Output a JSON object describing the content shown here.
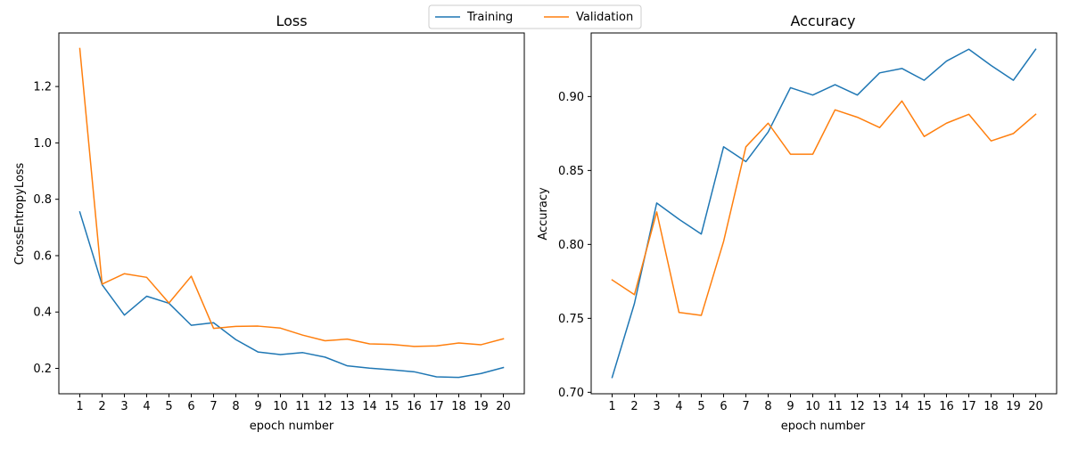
{
  "legend": {
    "placement": "top-center",
    "items": [
      {
        "label": "Training",
        "color": "#1f77b4"
      },
      {
        "label": "Validation",
        "color": "#ff7f0e"
      }
    ]
  },
  "chart_data": [
    {
      "type": "line",
      "title": "Loss",
      "xlabel": "epoch number",
      "ylabel": "CrossEntropyLoss",
      "x": [
        1,
        2,
        3,
        4,
        5,
        6,
        7,
        8,
        9,
        10,
        11,
        12,
        13,
        14,
        15,
        16,
        17,
        18,
        19,
        20
      ],
      "xticks": [
        "1",
        "2",
        "3",
        "4",
        "5",
        "6",
        "7",
        "8",
        "9",
        "10",
        "11",
        "12",
        "13",
        "14",
        "15",
        "16",
        "17",
        "18",
        "19",
        "20"
      ],
      "yticks": [
        0.2,
        0.4,
        0.6,
        0.8,
        1.0,
        1.2
      ],
      "ytick_labels": [
        "0.2",
        "0.4",
        "0.6",
        "0.8",
        "1.0",
        "1.2"
      ],
      "ylim": [
        0.11,
        1.39
      ],
      "grid": false,
      "series": [
        {
          "name": "Training",
          "color": "#1f77b4",
          "values": [
            0.755,
            0.497,
            0.389,
            0.456,
            0.431,
            0.353,
            0.362,
            0.302,
            0.258,
            0.249,
            0.256,
            0.24,
            0.209,
            0.201,
            0.195,
            0.188,
            0.17,
            0.168,
            0.182,
            0.203
          ]
        },
        {
          "name": "Validation",
          "color": "#ff7f0e",
          "values": [
            1.335,
            0.499,
            0.536,
            0.523,
            0.432,
            0.527,
            0.342,
            0.349,
            0.35,
            0.343,
            0.318,
            0.298,
            0.304,
            0.287,
            0.285,
            0.278,
            0.28,
            0.29,
            0.284,
            0.305
          ]
        }
      ]
    },
    {
      "type": "line",
      "title": "Accuracy",
      "xlabel": "epoch number",
      "ylabel": "Accuracy",
      "x": [
        1,
        2,
        3,
        4,
        5,
        6,
        7,
        8,
        9,
        10,
        11,
        12,
        13,
        14,
        15,
        16,
        17,
        18,
        19,
        20
      ],
      "xticks": [
        "1",
        "2",
        "3",
        "4",
        "5",
        "6",
        "7",
        "8",
        "9",
        "10",
        "11",
        "12",
        "13",
        "14",
        "15",
        "16",
        "17",
        "18",
        "19",
        "20"
      ],
      "yticks": [
        0.7,
        0.75,
        0.8,
        0.85,
        0.9
      ],
      "ytick_labels": [
        "0.70",
        "0.75",
        "0.80",
        "0.85",
        "0.90"
      ],
      "ylim": [
        0.699,
        0.943
      ],
      "grid": false,
      "series": [
        {
          "name": "Training",
          "color": "#1f77b4",
          "values": [
            0.71,
            0.76,
            0.828,
            0.817,
            0.807,
            0.866,
            0.856,
            0.876,
            0.906,
            0.901,
            0.908,
            0.901,
            0.916,
            0.919,
            0.911,
            0.924,
            0.932,
            0.921,
            0.911,
            0.932
          ]
        },
        {
          "name": "Validation",
          "color": "#ff7f0e",
          "values": [
            0.776,
            0.766,
            0.822,
            0.754,
            0.752,
            0.802,
            0.866,
            0.882,
            0.861,
            0.861,
            0.891,
            0.886,
            0.879,
            0.897,
            0.873,
            0.882,
            0.888,
            0.87,
            0.875,
            0.888
          ]
        }
      ]
    }
  ]
}
